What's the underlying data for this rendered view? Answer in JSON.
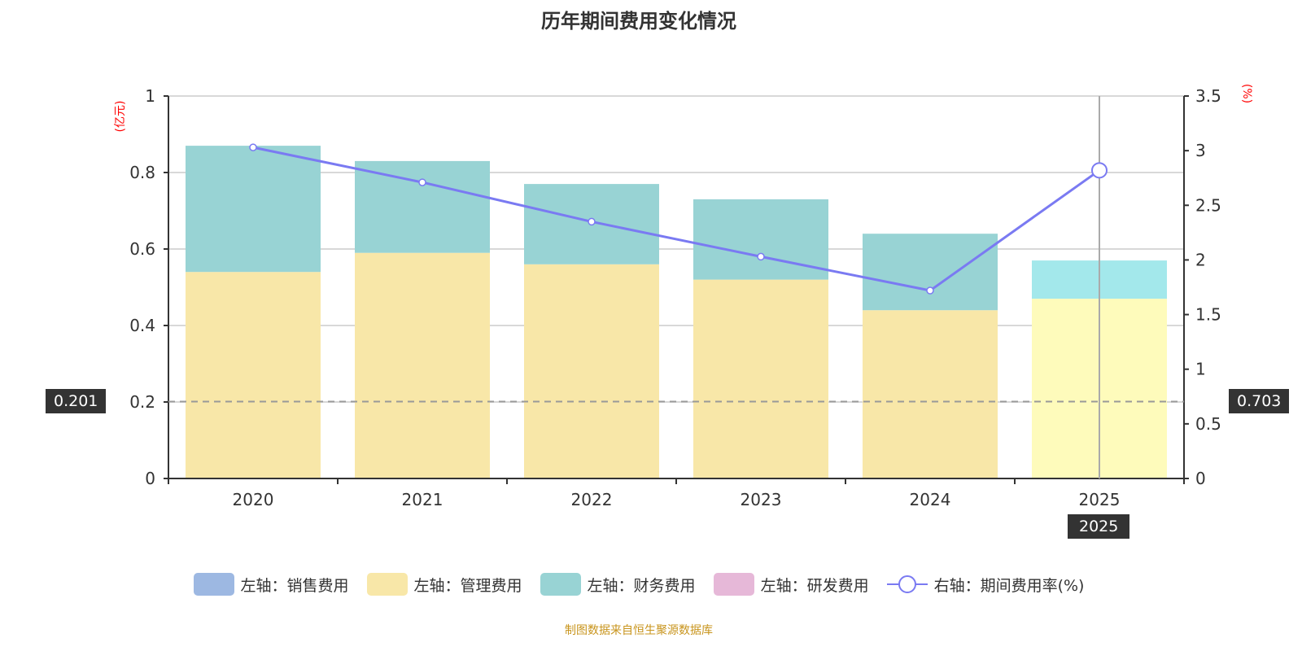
{
  "chart_data": {
    "type": "bar",
    "title": "历年期间费用变化情况",
    "categories": [
      "2020",
      "2021",
      "2022",
      "2023",
      "2024",
      "2025"
    ],
    "left_axis": {
      "label": "(亿元)",
      "range": [
        0,
        1
      ],
      "ticks": [
        "0",
        "0.2",
        "0.4",
        "0.6",
        "0.8",
        "1"
      ]
    },
    "right_axis": {
      "label": "(%)",
      "range": [
        0,
        3.5
      ],
      "ticks": [
        "0",
        "0.5",
        "1",
        "1.5",
        "2",
        "2.5",
        "3",
        "3.5"
      ]
    },
    "grid": true,
    "legend_position": "bottom",
    "series": [
      {
        "name": "左轴：销售费用",
        "type": "bar",
        "axis": "left",
        "color": "#9db8e2",
        "values": [
          0,
          0,
          0,
          0,
          0,
          0
        ]
      },
      {
        "name": "左轴：管理费用",
        "type": "bar",
        "axis": "left",
        "color": "#f8e7a8",
        "values": [
          0.54,
          0.59,
          0.56,
          0.52,
          0.44,
          0.47
        ]
      },
      {
        "name": "左轴：财务费用",
        "type": "bar",
        "axis": "left",
        "color": "#98d3d4",
        "values": [
          0.33,
          0.24,
          0.21,
          0.21,
          0.2,
          0.1
        ]
      },
      {
        "name": "左轴：研发费用",
        "type": "bar",
        "axis": "left",
        "color": "#e6b8d8",
        "values": [
          0,
          0,
          0,
          0,
          0,
          0
        ]
      },
      {
        "name": "右轴：期间费用率(%)",
        "type": "line",
        "axis": "right",
        "color": "#7a7af2",
        "values": [
          3.03,
          2.71,
          2.35,
          2.03,
          1.72,
          2.82
        ]
      }
    ],
    "highlight": {
      "category": "2025",
      "mgmt_color": "#fefbbb",
      "fin_color": "#a3e8eb"
    },
    "crosshair": {
      "left_value": "0.201",
      "right_value": "0.703",
      "x_label": "2025"
    }
  },
  "source": "制图数据来自恒生聚源数据库"
}
